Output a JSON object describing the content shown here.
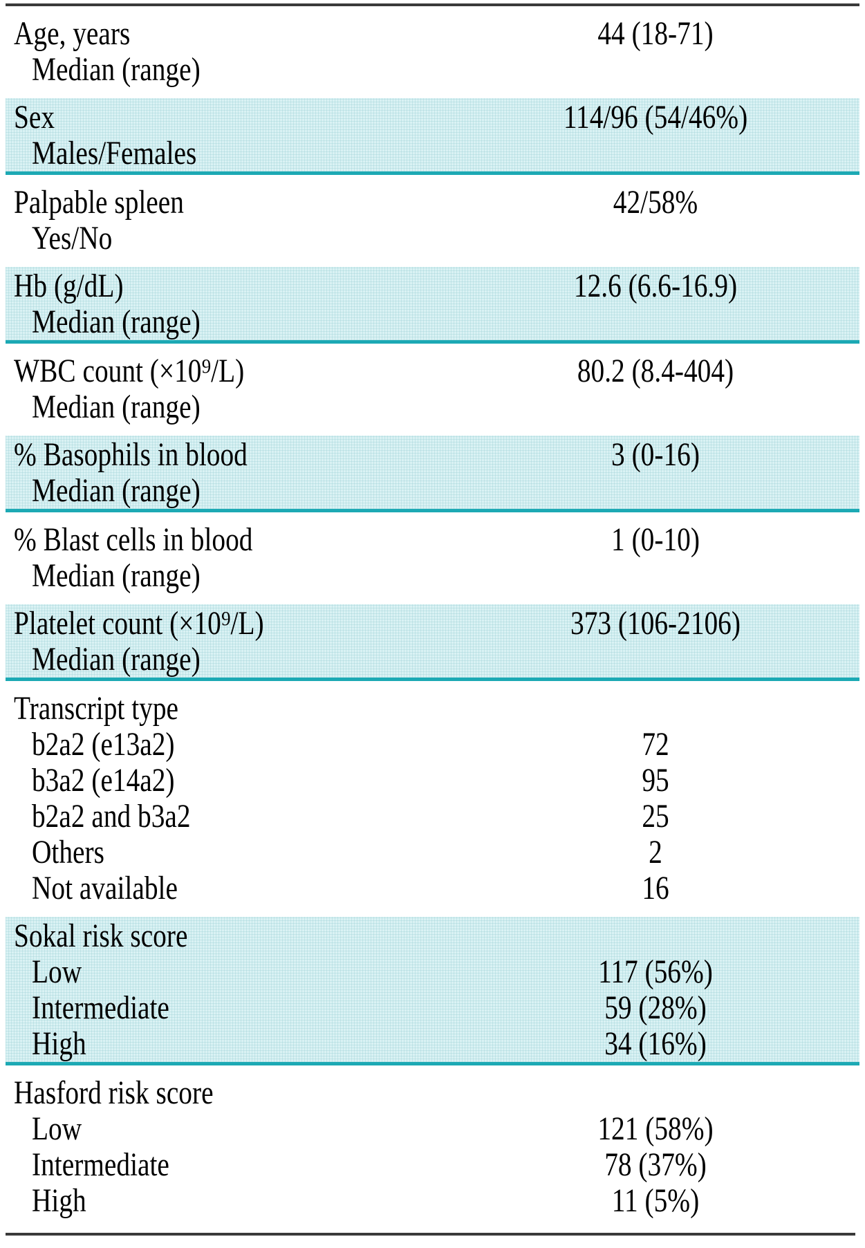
{
  "colors": {
    "row_shade": "#daf2f4",
    "shade_grid": "rgba(150,205,210,0.35)",
    "divider_teal": "#1ca9b4",
    "border_dark": "#3a3a3a",
    "text": "#000000"
  },
  "table": {
    "rows": [
      {
        "shaded": false,
        "lines": [
          {
            "text": "Age, years",
            "indent": false,
            "value": "44 (18-71)"
          },
          {
            "text": "Median (range)",
            "indent": true,
            "value": ""
          }
        ]
      },
      {
        "shaded": true,
        "lines": [
          {
            "text": "Sex",
            "indent": false,
            "value": "114/96 (54/46%)"
          },
          {
            "text": "Males/Females",
            "indent": true,
            "value": ""
          }
        ]
      },
      {
        "shaded": false,
        "lines": [
          {
            "text": "Palpable spleen",
            "indent": false,
            "value": "42/58%"
          },
          {
            "text": "Yes/No",
            "indent": true,
            "value": ""
          }
        ]
      },
      {
        "shaded": true,
        "lines": [
          {
            "text": "Hb (g/dL)",
            "indent": false,
            "value": "12.6 (6.6-16.9)"
          },
          {
            "text": "Median (range)",
            "indent": true,
            "value": ""
          }
        ]
      },
      {
        "shaded": false,
        "lines": [
          {
            "text": "WBC count (×10⁹/L)",
            "indent": false,
            "value": "80.2 (8.4-404)"
          },
          {
            "text": "Median (range)",
            "indent": true,
            "value": ""
          }
        ]
      },
      {
        "shaded": true,
        "lines": [
          {
            "text": "% Basophils in blood",
            "indent": false,
            "value": "3 (0-16)"
          },
          {
            "text": "Median (range)",
            "indent": true,
            "value": ""
          }
        ]
      },
      {
        "shaded": false,
        "lines": [
          {
            "text": "% Blast cells in blood",
            "indent": false,
            "value": "1 (0-10)"
          },
          {
            "text": "Median (range)",
            "indent": true,
            "value": ""
          }
        ]
      },
      {
        "shaded": true,
        "lines": [
          {
            "text": "Platelet count (×10⁹/L)",
            "indent": false,
            "value": "373 (106-2106)"
          },
          {
            "text": "Median (range)",
            "indent": true,
            "value": ""
          }
        ]
      },
      {
        "shaded": false,
        "lines": [
          {
            "text": "Transcript type",
            "indent": false,
            "value": ""
          },
          {
            "text": "b2a2 (e13a2)",
            "indent": true,
            "value": "72"
          },
          {
            "text": "b3a2 (e14a2)",
            "indent": true,
            "value": "95"
          },
          {
            "text": "b2a2 and b3a2",
            "indent": true,
            "value": "25"
          },
          {
            "text": "Others",
            "indent": true,
            "value": "2"
          },
          {
            "text": "Not available",
            "indent": true,
            "value": "16"
          }
        ]
      },
      {
        "shaded": true,
        "lines": [
          {
            "text": "Sokal risk score",
            "indent": false,
            "value": ""
          },
          {
            "text": "Low",
            "indent": true,
            "value": "117 (56%)"
          },
          {
            "text": "Intermediate",
            "indent": true,
            "value": "59 (28%)"
          },
          {
            "text": "High",
            "indent": true,
            "value": "34 (16%)"
          }
        ]
      },
      {
        "shaded": false,
        "lines": [
          {
            "text": "Hasford risk score",
            "indent": false,
            "value": ""
          },
          {
            "text": "Low",
            "indent": true,
            "value": "121 (58%)"
          },
          {
            "text": "Intermediate",
            "indent": true,
            "value": "78 (37%)"
          },
          {
            "text": "High",
            "indent": true,
            "value": "11 (5%)"
          }
        ]
      }
    ]
  }
}
